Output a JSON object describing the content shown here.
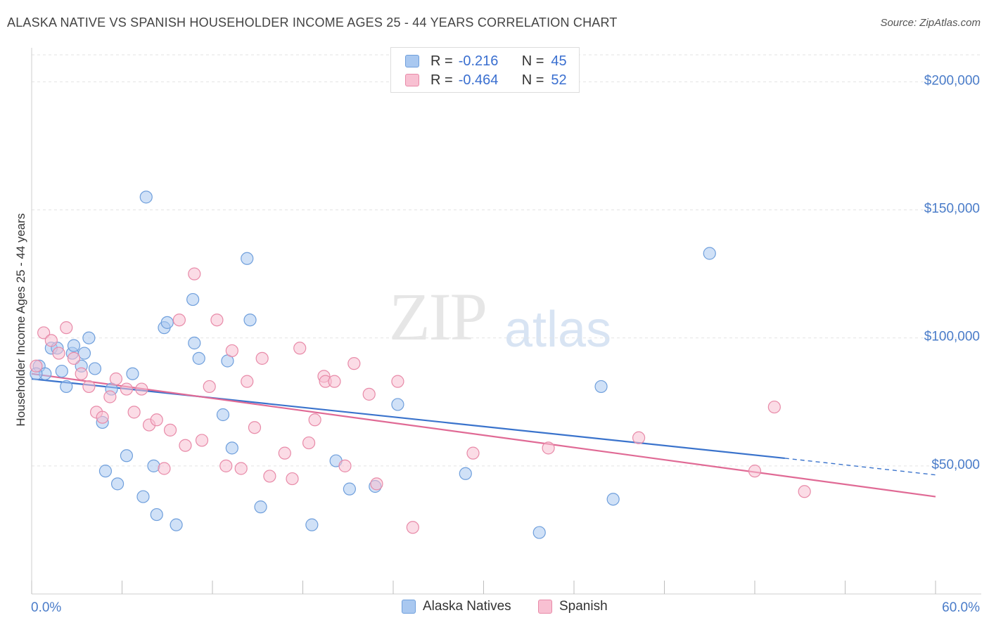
{
  "title": "ALASKA NATIVE VS SPANISH HOUSEHOLDER INCOME AGES 25 - 44 YEARS CORRELATION CHART",
  "source": "Source: ZipAtlas.com",
  "watermark": {
    "zip": "ZIP",
    "atlas": "atlas"
  },
  "legend": {
    "rows": [
      {
        "r_label": "R =",
        "r_value": "-0.216",
        "n_label": "N =",
        "n_value": "45",
        "color": "#a9c8f0",
        "border": "#6f9fdc"
      },
      {
        "r_label": "R =",
        "r_value": "-0.464",
        "n_label": "N =",
        "n_value": "52",
        "color": "#f8c0d2",
        "border": "#e88aa8"
      }
    ]
  },
  "bottom_legend": [
    {
      "label": "Alaska Natives",
      "color": "#a9c8f0",
      "border": "#6f9fdc"
    },
    {
      "label": "Spanish",
      "color": "#f8c0d2",
      "border": "#e88aa8"
    }
  ],
  "chart_data": {
    "type": "scatter",
    "xlabel": "",
    "ylabel": "Householder Income Ages 25 - 44 years",
    "xlim": [
      0,
      60
    ],
    "ylim": [
      0,
      210000
    ],
    "x_tick_labels": [
      "0.0%",
      "60.0%"
    ],
    "y_ticks": [
      50000,
      100000,
      150000,
      200000
    ],
    "y_tick_labels": [
      "$50,000",
      "$100,000",
      "$150,000",
      "$200,000"
    ],
    "grid": true,
    "legend_placement": "top-center",
    "series": [
      {
        "name": "Alaska Natives",
        "color": "#6f9fdc",
        "fill": "#a9c8f0",
        "points": [
          [
            0.5,
            89000
          ],
          [
            0.9,
            86000
          ],
          [
            1.3,
            96000
          ],
          [
            1.7,
            96000
          ],
          [
            2.0,
            87000
          ],
          [
            2.3,
            81000
          ],
          [
            2.7,
            94000
          ],
          [
            2.8,
            97000
          ],
          [
            3.3,
            89000
          ],
          [
            3.5,
            94000
          ],
          [
            3.8,
            100000
          ],
          [
            4.2,
            88000
          ],
          [
            4.7,
            67000
          ],
          [
            4.9,
            48000
          ],
          [
            5.3,
            80000
          ],
          [
            5.7,
            43000
          ],
          [
            6.3,
            54000
          ],
          [
            6.7,
            86000
          ],
          [
            7.4,
            38000
          ],
          [
            7.6,
            155000
          ],
          [
            8.1,
            50000
          ],
          [
            8.3,
            31000
          ],
          [
            8.8,
            104000
          ],
          [
            9.0,
            106000
          ],
          [
            9.6,
            27000
          ],
          [
            10.7,
            115000
          ],
          [
            10.8,
            98000
          ],
          [
            11.1,
            92000
          ],
          [
            12.7,
            70000
          ],
          [
            13.0,
            91000
          ],
          [
            13.3,
            57000
          ],
          [
            14.3,
            131000
          ],
          [
            14.5,
            107000
          ],
          [
            15.2,
            34000
          ],
          [
            18.6,
            27000
          ],
          [
            20.2,
            52000
          ],
          [
            21.1,
            41000
          ],
          [
            22.8,
            42000
          ],
          [
            24.3,
            74000
          ],
          [
            28.8,
            47000
          ],
          [
            33.7,
            24000
          ],
          [
            37.8,
            81000
          ],
          [
            38.6,
            37000
          ],
          [
            45.0,
            133000
          ],
          [
            0.3,
            86000
          ]
        ],
        "trend": {
          "x0": 0,
          "y0": 84000,
          "x1": 50,
          "y1": 53000,
          "dashed_to_x": 60,
          "dashed_to_y": 46500
        }
      },
      {
        "name": "Spanish",
        "color": "#e88aa8",
        "fill": "#f8c0d2",
        "points": [
          [
            0.3,
            89000
          ],
          [
            0.8,
            102000
          ],
          [
            1.3,
            99000
          ],
          [
            1.8,
            94000
          ],
          [
            2.3,
            104000
          ],
          [
            2.8,
            92000
          ],
          [
            3.3,
            86000
          ],
          [
            3.8,
            81000
          ],
          [
            4.3,
            71000
          ],
          [
            4.7,
            69000
          ],
          [
            5.2,
            77000
          ],
          [
            5.6,
            84000
          ],
          [
            6.3,
            80000
          ],
          [
            6.8,
            71000
          ],
          [
            7.3,
            80000
          ],
          [
            7.8,
            66000
          ],
          [
            8.3,
            68000
          ],
          [
            8.8,
            49000
          ],
          [
            9.2,
            64000
          ],
          [
            9.8,
            107000
          ],
          [
            10.2,
            58000
          ],
          [
            10.8,
            125000
          ],
          [
            11.3,
            60000
          ],
          [
            11.8,
            81000
          ],
          [
            12.3,
            107000
          ],
          [
            12.9,
            50000
          ],
          [
            13.3,
            95000
          ],
          [
            13.9,
            49000
          ],
          [
            14.3,
            83000
          ],
          [
            14.8,
            65000
          ],
          [
            15.3,
            92000
          ],
          [
            15.8,
            46000
          ],
          [
            16.8,
            55000
          ],
          [
            17.3,
            45000
          ],
          [
            17.8,
            96000
          ],
          [
            18.4,
            59000
          ],
          [
            18.8,
            68000
          ],
          [
            19.4,
            85000
          ],
          [
            19.5,
            83000
          ],
          [
            20.1,
            83000
          ],
          [
            20.8,
            50000
          ],
          [
            21.4,
            90000
          ],
          [
            22.4,
            78000
          ],
          [
            22.9,
            43000
          ],
          [
            24.3,
            83000
          ],
          [
            25.3,
            26000
          ],
          [
            29.3,
            55000
          ],
          [
            34.3,
            57000
          ],
          [
            40.3,
            61000
          ],
          [
            49.3,
            73000
          ],
          [
            48.0,
            48000
          ],
          [
            51.3,
            40000
          ]
        ],
        "trend": {
          "x0": 0,
          "y0": 86000,
          "x1": 60,
          "y1": 38000
        }
      }
    ]
  }
}
